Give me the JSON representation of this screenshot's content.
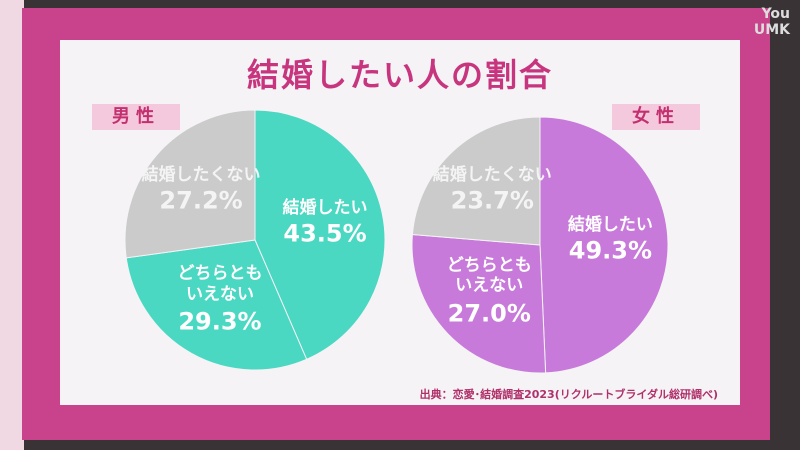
{
  "title": "結婚したい人の割合",
  "source": "出典：恋愛･結婚調査2023(リクルートブライダル総研調べ)",
  "watermark": [
    "You",
    "UMK"
  ],
  "chart_data": [
    {
      "type": "pie",
      "title": "男性",
      "categories": [
        "結婚したい",
        "どちらとも\nいえない",
        "結婚したくない"
      ],
      "values": [
        43.5,
        29.3,
        27.2
      ],
      "value_labels": [
        "43.5%",
        "29.3%",
        "27.2%"
      ],
      "colors": [
        "#4ad8c2",
        "#4ad8c2",
        "#cbcbcb"
      ]
    },
    {
      "type": "pie",
      "title": "女性",
      "categories": [
        "結婚したい",
        "どちらとも\nいえない",
        "結婚したくない"
      ],
      "values": [
        49.3,
        27.0,
        23.7
      ],
      "value_labels": [
        "49.3%",
        "27.0%",
        "23.7%"
      ],
      "colors": [
        "#c77ad9",
        "#c77ad9",
        "#cbcbcb"
      ]
    }
  ]
}
